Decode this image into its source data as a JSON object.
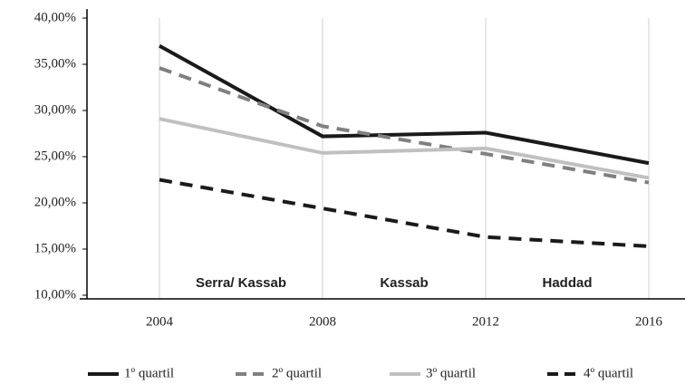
{
  "chart_data": {
    "type": "line",
    "categories": [
      "2004",
      "2008",
      "2012",
      "2016"
    ],
    "series": [
      {
        "name": "1º quartil",
        "color": "#1a1a1a",
        "style": "solid",
        "values": [
          37.0,
          27.2,
          27.6,
          24.3
        ]
      },
      {
        "name": "2º quartil",
        "color": "#808080",
        "style": "dashed",
        "values": [
          34.6,
          28.3,
          25.3,
          22.2
        ]
      },
      {
        "name": "3º quartil",
        "color": "#c0c0c0",
        "style": "solid",
        "values": [
          29.1,
          25.4,
          25.9,
          22.7
        ]
      },
      {
        "name": "4º quartil",
        "color": "#1a1a1a",
        "style": "dashed",
        "values": [
          22.5,
          19.4,
          16.3,
          15.3
        ]
      }
    ],
    "annotations": [
      "Serra/ Kassab",
      "Kassab",
      "Haddad"
    ],
    "ylim": [
      10,
      40
    ],
    "yticks": [
      {
        "value": 10,
        "label": "10,00%"
      },
      {
        "value": 15,
        "label": "15,00%"
      },
      {
        "value": 20,
        "label": "20,00%"
      },
      {
        "value": 25,
        "label": "25,00%"
      },
      {
        "value": 30,
        "label": "30,00%"
      },
      {
        "value": 35,
        "label": "35,00%"
      },
      {
        "value": 40,
        "label": "40,00%"
      }
    ],
    "grid": true,
    "legend": "bottom"
  }
}
